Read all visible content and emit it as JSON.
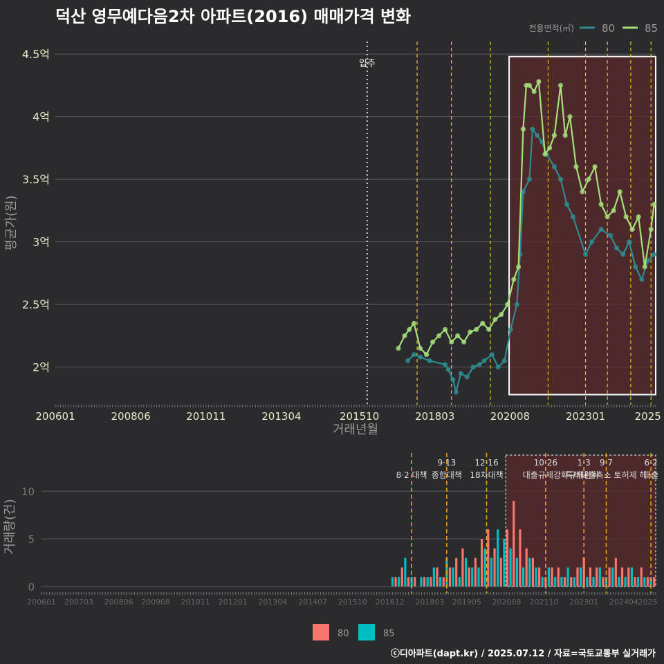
{
  "title": "덕산 영무예다음2차 아파트(2016) 매매가격 변화",
  "footer": "ⓒ디아파트(dapt.kr) / 2025.07.12 / 자료=국토교통부 실거래가",
  "colors": {
    "s80": "#2e8c91",
    "s85": "#a6e07a",
    "bar80": "#f8766d",
    "bar85": "#00bfc4",
    "highlight": "#5a2a2c",
    "policy": "#e6c619"
  },
  "chart_data": [
    {
      "type": "line",
      "title": "덕산 영무예다음2차 아파트(2016) 매매가격 변화",
      "xlabel": "거래년월",
      "ylabel": "평균가(원)",
      "xlim": [
        2006.0,
        2025.25
      ],
      "ylim": [
        1.7,
        4.6
      ],
      "x_ticks": [
        "200601",
        "200806",
        "201011",
        "201304",
        "201510",
        "201803",
        "202008",
        "202301",
        "2025"
      ],
      "y_ticks": [
        "2억",
        "2.5억",
        "3억",
        "3.5억",
        "4억",
        "4.5억"
      ],
      "y_tick_values": [
        2,
        2.5,
        3,
        3.5,
        4,
        4.5
      ],
      "legend_title": "전용면적(㎡)",
      "annotation": {
        "label": "입주",
        "x": 2016.0
      },
      "policy_lines": [
        2017.6,
        2018.7,
        2019.95,
        2021.8,
        2023.0,
        2023.7,
        2024.45,
        2025.1
      ],
      "highlight_range": [
        2020.55,
        2025.25
      ],
      "series": [
        {
          "name": "80",
          "x": [
            2017.3,
            2017.5,
            2017.7,
            2018.0,
            2018.5,
            2018.6,
            2018.75,
            2018.85,
            2019.0,
            2019.2,
            2019.4,
            2019.6,
            2019.75,
            2020.0,
            2020.2,
            2020.4,
            2020.6,
            2020.8,
            2020.9,
            2021.0,
            2021.2,
            2021.3,
            2021.45,
            2021.6,
            2021.75,
            2022.0,
            2022.2,
            2022.4,
            2022.6,
            2023.0,
            2023.2,
            2023.5,
            2023.8,
            2024.0,
            2024.2,
            2024.4,
            2024.6,
            2024.8,
            2025.0,
            2025.2
          ],
          "values": [
            2.05,
            2.1,
            2.08,
            2.05,
            2.02,
            1.98,
            1.9,
            1.8,
            1.95,
            1.92,
            2.0,
            2.02,
            2.05,
            2.1,
            2.0,
            2.05,
            2.3,
            2.5,
            2.9,
            3.4,
            3.5,
            3.9,
            3.85,
            3.8,
            3.7,
            3.6,
            3.5,
            3.3,
            3.2,
            2.9,
            3.0,
            3.1,
            3.05,
            2.95,
            2.9,
            3.0,
            2.8,
            2.7,
            2.85,
            2.9
          ]
        },
        {
          "name": "85",
          "x": [
            2017.0,
            2017.2,
            2017.35,
            2017.5,
            2017.7,
            2017.9,
            2018.1,
            2018.3,
            2018.5,
            2018.7,
            2018.9,
            2019.1,
            2019.3,
            2019.5,
            2019.7,
            2019.9,
            2020.1,
            2020.3,
            2020.5,
            2020.7,
            2020.85,
            2021.0,
            2021.1,
            2021.2,
            2021.35,
            2021.5,
            2021.7,
            2021.85,
            2022.0,
            2022.2,
            2022.35,
            2022.5,
            2022.7,
            2022.9,
            2023.1,
            2023.3,
            2023.5,
            2023.7,
            2023.9,
            2024.1,
            2024.3,
            2024.5,
            2024.7,
            2024.9,
            2025.1,
            2025.2
          ],
          "values": [
            2.15,
            2.25,
            2.3,
            2.35,
            2.15,
            2.1,
            2.2,
            2.25,
            2.3,
            2.2,
            2.25,
            2.2,
            2.28,
            2.3,
            2.35,
            2.3,
            2.38,
            2.42,
            2.5,
            2.7,
            2.8,
            3.9,
            4.25,
            4.25,
            4.2,
            4.28,
            3.7,
            3.75,
            3.85,
            4.25,
            3.85,
            4.0,
            3.6,
            3.4,
            3.5,
            3.6,
            3.3,
            3.2,
            3.25,
            3.4,
            3.2,
            3.1,
            3.2,
            2.8,
            3.1,
            3.3
          ]
        }
      ]
    },
    {
      "type": "bar",
      "xlabel": "",
      "ylabel": "거래량(건)",
      "ylim": [
        0,
        14
      ],
      "y_ticks": [
        "0",
        "5",
        "10"
      ],
      "y_tick_values": [
        0,
        5,
        10
      ],
      "x_ticks": [
        "200601",
        "200703",
        "200806",
        "200908",
        "201011",
        "201201",
        "201304",
        "201407",
        "201510",
        "201612",
        "201803",
        "201905",
        "202008",
        "202110",
        "202301",
        "202404",
        "2025"
      ],
      "policies": [
        {
          "x": 2017.6,
          "top": "",
          "bottom": "8·2 대책"
        },
        {
          "x": 2018.7,
          "top": "9·13",
          "bottom": "종합대책"
        },
        {
          "x": 2019.95,
          "top": "12·16",
          "bottom": "18차대책"
        },
        {
          "x": 2021.8,
          "top": "10·26",
          "bottom": "대출규제강화"
        },
        {
          "x": 2023.0,
          "top": "1·3",
          "bottom": "규제완화"
        },
        {
          "x": 2023.7,
          "top": "9·7",
          "bottom": "특례대출축소 토허제 해"
        },
        {
          "x": 2025.1,
          "top": "6·2",
          "bottom": "대출"
        }
      ],
      "highlight_range": [
        2020.55,
        2025.25
      ],
      "legend": [
        "80",
        "85"
      ],
      "series": [
        {
          "name": "80",
          "x": [
            2017.1,
            2017.3,
            2017.5,
            2017.7,
            2018.0,
            2018.2,
            2018.4,
            2018.6,
            2018.8,
            2019.0,
            2019.2,
            2019.4,
            2019.6,
            2019.8,
            2020.0,
            2020.2,
            2020.4,
            2020.6,
            2020.8,
            2021.0,
            2021.2,
            2021.4,
            2021.6,
            2021.8,
            2022.0,
            2022.2,
            2022.4,
            2022.6,
            2022.8,
            2023.0,
            2023.2,
            2023.4,
            2023.6,
            2023.8,
            2024.0,
            2024.2,
            2024.4,
            2024.6,
            2024.8,
            2025.0,
            2025.2
          ],
          "values": [
            1,
            2,
            1,
            1,
            1,
            1,
            2,
            1,
            2,
            3,
            4,
            2,
            3,
            5,
            6,
            4,
            3,
            6,
            9,
            6,
            4,
            3,
            2,
            1,
            2,
            2,
            1,
            1,
            2,
            3,
            2,
            2,
            1,
            2,
            3,
            2,
            2,
            1,
            2,
            1,
            1
          ]
        },
        {
          "name": "85",
          "x": [
            2017.0,
            2017.2,
            2017.4,
            2017.6,
            2017.9,
            2018.1,
            2018.3,
            2018.5,
            2018.7,
            2018.9,
            2019.1,
            2019.3,
            2019.5,
            2019.7,
            2019.9,
            2020.1,
            2020.3,
            2020.5,
            2020.7,
            2020.9,
            2021.1,
            2021.3,
            2021.5,
            2021.7,
            2021.9,
            2022.1,
            2022.3,
            2022.5,
            2022.7,
            2022.9,
            2023.1,
            2023.3,
            2023.5,
            2023.7,
            2023.9,
            2024.1,
            2024.3,
            2024.5,
            2024.7,
            2024.9,
            2025.1
          ],
          "values": [
            1,
            1,
            3,
            1,
            1,
            1,
            2,
            1,
            3,
            2,
            1,
            3,
            2,
            2,
            4,
            3,
            6,
            5,
            4,
            3,
            2,
            3,
            2,
            1,
            2,
            1,
            1,
            2,
            1,
            2,
            1,
            1,
            2,
            1,
            2,
            1,
            1,
            2,
            1,
            1,
            1
          ]
        }
      ]
    }
  ]
}
